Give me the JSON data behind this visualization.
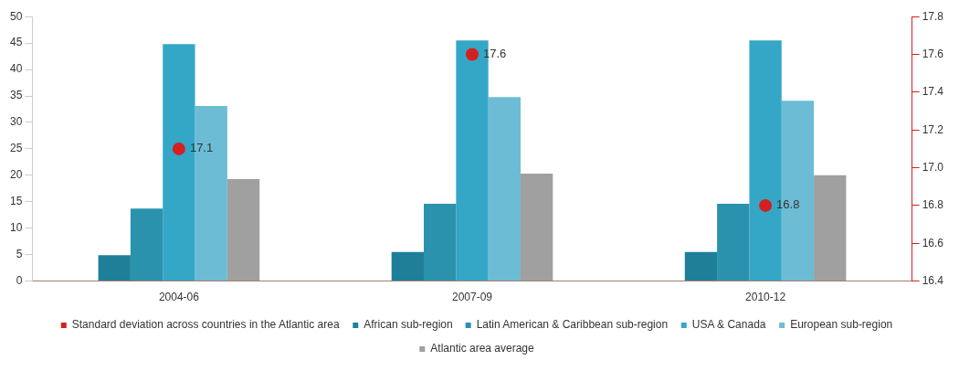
{
  "chart_data": {
    "type": "bar",
    "categories": [
      "2004-06",
      "2007-09",
      "2010-12"
    ],
    "series": [
      {
        "name": "African sub-region",
        "color": "#1f7f99",
        "values": [
          4.9,
          5.5,
          5.5
        ]
      },
      {
        "name": "Latin American & Caribbean sub-region",
        "color": "#2a92ad",
        "values": [
          13.7,
          14.6,
          14.6
        ]
      },
      {
        "name": "USA & Canada",
        "color": "#35a7c6",
        "values": [
          44.8,
          45.5,
          45.5
        ]
      },
      {
        "name": "European sub-region",
        "color": "#6cbcd6",
        "values": [
          33.1,
          34.8,
          34.1
        ]
      },
      {
        "name": "Atlantic area average",
        "color": "#a0a0a0",
        "values": [
          19.3,
          20.3,
          20.0
        ]
      },
      {
        "name": "Standard deviation across countries in the Atlantic area",
        "type": "scatter",
        "axis": "y2",
        "color": "#d42020",
        "marker": "circle",
        "values": [
          17.1,
          17.6,
          16.8
        ],
        "value_labels": [
          "17.1",
          "17.6",
          "16.8"
        ]
      }
    ],
    "ylim": [
      0,
      50
    ],
    "yticks": [
      0,
      5,
      10,
      15,
      20,
      25,
      30,
      35,
      40,
      45,
      50
    ],
    "y2lim": [
      16.4,
      17.8
    ],
    "y2ticks": [
      16.4,
      16.6,
      16.8,
      {
        "value": 17,
        "label": "17.0"
      },
      17.2,
      17.4,
      17.6,
      17.8
    ],
    "grid": false,
    "legend": "bottom"
  }
}
